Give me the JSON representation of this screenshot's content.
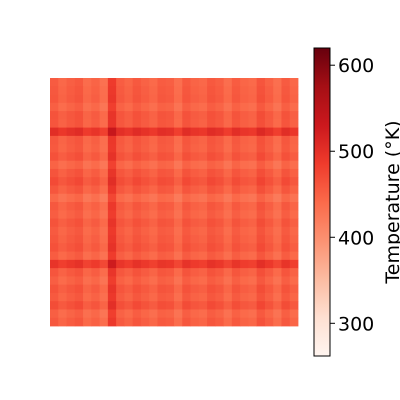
{
  "chart_data": {
    "type": "heatmap",
    "title": "",
    "xlabel": "",
    "ylabel": "",
    "n_rows": 30,
    "n_cols": 30,
    "row_offsets": [
      -8,
      -5,
      -3,
      -12,
      0,
      -2,
      40,
      -4,
      -6,
      2,
      -15,
      -1,
      8,
      -3,
      -20,
      -5,
      -10,
      0,
      -7,
      -3,
      2,
      -9,
      32,
      -2,
      -11,
      0,
      -6,
      6,
      -12,
      -5
    ],
    "col_offsets": [
      -2,
      -14,
      -6,
      0,
      -18,
      -10,
      -24,
      30,
      -4,
      -12,
      0,
      -8,
      -16,
      -3,
      -6,
      -22,
      -1,
      -10,
      -14,
      0,
      -6,
      -20,
      -3,
      -12,
      -16,
      4,
      -8,
      -22,
      -2,
      -14
    ],
    "base_value": 465,
    "colorbar": {
      "label": "Temperature (°K)",
      "min": 262,
      "max": 620,
      "ticks": [
        "300",
        "400",
        "500",
        "600"
      ],
      "tick_values": [
        300,
        400,
        500,
        600
      ],
      "colormap": "Reds"
    }
  }
}
